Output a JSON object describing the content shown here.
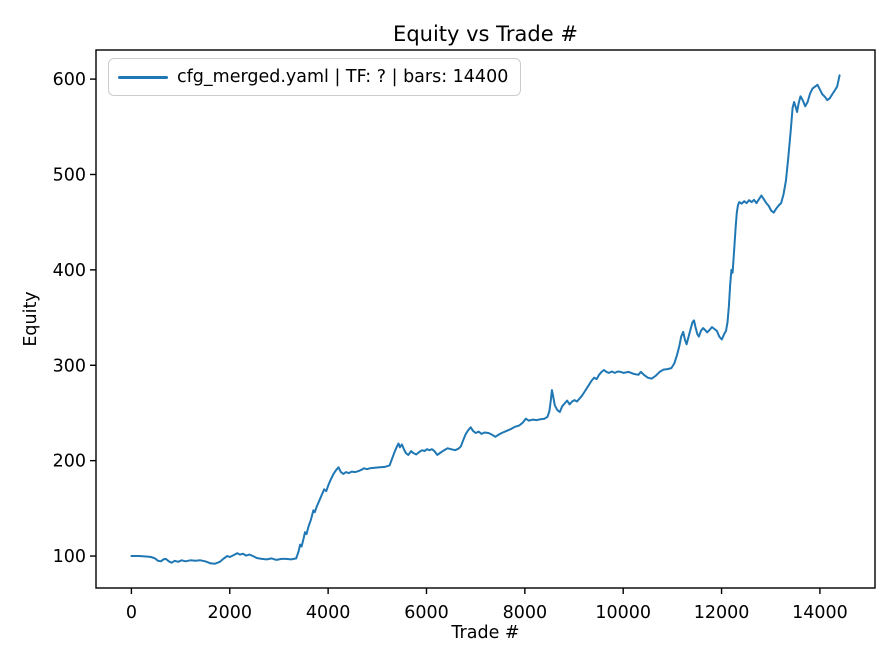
{
  "chart_data": {
    "type": "line",
    "title": "Equity vs Trade #",
    "xlabel": "Trade #",
    "ylabel": "Equity",
    "legend_position": "upper left",
    "grid": false,
    "background": "#ffffff",
    "spine_color": "#000000",
    "xlim": [
      -720,
      15120
    ],
    "ylim": [
      66.5,
      630.5
    ],
    "x_ticks": [
      0,
      2000,
      4000,
      6000,
      8000,
      10000,
      12000,
      14000
    ],
    "y_ticks": [
      100,
      200,
      300,
      400,
      500,
      600
    ],
    "series": [
      {
        "name": "cfg_merged.yaml | TF: ? | bars: 14400",
        "color": "#1f77b4",
        "points": [
          [
            0,
            100
          ],
          [
            150,
            100
          ],
          [
            300,
            99.5
          ],
          [
            400,
            99
          ],
          [
            480,
            97.5
          ],
          [
            540,
            95
          ],
          [
            600,
            94.5
          ],
          [
            650,
            96.5
          ],
          [
            700,
            97
          ],
          [
            760,
            94.5
          ],
          [
            820,
            93
          ],
          [
            880,
            95
          ],
          [
            950,
            94
          ],
          [
            1020,
            95.5
          ],
          [
            1100,
            94.5
          ],
          [
            1200,
            95.5
          ],
          [
            1300,
            95
          ],
          [
            1400,
            95.5
          ],
          [
            1500,
            94.5
          ],
          [
            1600,
            92.5
          ],
          [
            1700,
            92
          ],
          [
            1800,
            94
          ],
          [
            1880,
            97.5
          ],
          [
            1950,
            100
          ],
          [
            2000,
            99
          ],
          [
            2080,
            101
          ],
          [
            2150,
            103
          ],
          [
            2210,
            101.5
          ],
          [
            2270,
            102.5
          ],
          [
            2330,
            100.5
          ],
          [
            2400,
            101.5
          ],
          [
            2470,
            100
          ],
          [
            2550,
            98
          ],
          [
            2650,
            97
          ],
          [
            2750,
            96.5
          ],
          [
            2850,
            97.5
          ],
          [
            2950,
            96
          ],
          [
            3050,
            97
          ],
          [
            3150,
            97
          ],
          [
            3250,
            96.5
          ],
          [
            3350,
            97.5
          ],
          [
            3400,
            105
          ],
          [
            3430,
            112
          ],
          [
            3460,
            110
          ],
          [
            3500,
            118
          ],
          [
            3530,
            125
          ],
          [
            3560,
            123
          ],
          [
            3600,
            131
          ],
          [
            3650,
            138
          ],
          [
            3700,
            148
          ],
          [
            3730,
            146
          ],
          [
            3770,
            152
          ],
          [
            3820,
            158
          ],
          [
            3870,
            164
          ],
          [
            3920,
            170
          ],
          [
            3960,
            168
          ],
          [
            4010,
            175
          ],
          [
            4060,
            181
          ],
          [
            4110,
            186
          ],
          [
            4160,
            190
          ],
          [
            4210,
            193
          ],
          [
            4260,
            188
          ],
          [
            4310,
            186
          ],
          [
            4360,
            188
          ],
          [
            4420,
            187
          ],
          [
            4480,
            188.5
          ],
          [
            4550,
            188
          ],
          [
            4620,
            189
          ],
          [
            4680,
            190.5
          ],
          [
            4730,
            192
          ],
          [
            4790,
            191
          ],
          [
            4850,
            192
          ],
          [
            4950,
            192.5
          ],
          [
            5050,
            193
          ],
          [
            5150,
            193.5
          ],
          [
            5250,
            195
          ],
          [
            5300,
            202
          ],
          [
            5350,
            209
          ],
          [
            5400,
            215
          ],
          [
            5430,
            218
          ],
          [
            5460,
            214
          ],
          [
            5500,
            217
          ],
          [
            5540,
            212
          ],
          [
            5580,
            208
          ],
          [
            5630,
            206
          ],
          [
            5690,
            210
          ],
          [
            5730,
            208
          ],
          [
            5790,
            206.5
          ],
          [
            5850,
            209
          ],
          [
            5910,
            211
          ],
          [
            5960,
            210
          ],
          [
            6010,
            212
          ],
          [
            6060,
            211
          ],
          [
            6110,
            212
          ],
          [
            6160,
            210
          ],
          [
            6220,
            206
          ],
          [
            6290,
            208.5
          ],
          [
            6360,
            211
          ],
          [
            6430,
            213
          ],
          [
            6500,
            212
          ],
          [
            6580,
            211
          ],
          [
            6650,
            212.5
          ],
          [
            6700,
            215
          ],
          [
            6750,
            222
          ],
          [
            6800,
            228
          ],
          [
            6850,
            232
          ],
          [
            6900,
            235
          ],
          [
            6950,
            231
          ],
          [
            7000,
            229
          ],
          [
            7060,
            230.5
          ],
          [
            7120,
            228
          ],
          [
            7180,
            229.5
          ],
          [
            7260,
            229
          ],
          [
            7340,
            227
          ],
          [
            7400,
            225
          ],
          [
            7460,
            227
          ],
          [
            7530,
            229
          ],
          [
            7620,
            231
          ],
          [
            7710,
            233
          ],
          [
            7800,
            235.5
          ],
          [
            7890,
            237
          ],
          [
            7960,
            240
          ],
          [
            8020,
            244
          ],
          [
            8080,
            242
          ],
          [
            8160,
            243
          ],
          [
            8240,
            242.5
          ],
          [
            8320,
            243.5
          ],
          [
            8400,
            244
          ],
          [
            8460,
            246
          ],
          [
            8500,
            252
          ],
          [
            8530,
            264
          ],
          [
            8550,
            274
          ],
          [
            8575,
            268
          ],
          [
            8610,
            258
          ],
          [
            8660,
            253
          ],
          [
            8710,
            251
          ],
          [
            8760,
            257
          ],
          [
            8810,
            260
          ],
          [
            8860,
            263
          ],
          [
            8910,
            259
          ],
          [
            8960,
            262
          ],
          [
            9010,
            263.5
          ],
          [
            9060,
            262
          ],
          [
            9110,
            265
          ],
          [
            9160,
            268
          ],
          [
            9210,
            272
          ],
          [
            9260,
            276
          ],
          [
            9310,
            280
          ],
          [
            9360,
            284
          ],
          [
            9410,
            287
          ],
          [
            9460,
            285.5
          ],
          [
            9510,
            290
          ],
          [
            9560,
            293
          ],
          [
            9610,
            295
          ],
          [
            9660,
            293
          ],
          [
            9710,
            292
          ],
          [
            9770,
            293.5
          ],
          [
            9830,
            292
          ],
          [
            9890,
            293.5
          ],
          [
            9950,
            293
          ],
          [
            10010,
            292
          ],
          [
            10110,
            293
          ],
          [
            10210,
            291
          ],
          [
            10310,
            290
          ],
          [
            10360,
            293
          ],
          [
            10420,
            290
          ],
          [
            10500,
            287
          ],
          [
            10580,
            286
          ],
          [
            10660,
            289
          ],
          [
            10740,
            293
          ],
          [
            10820,
            295.5
          ],
          [
            10900,
            296
          ],
          [
            10980,
            297
          ],
          [
            11040,
            302
          ],
          [
            11090,
            310
          ],
          [
            11140,
            320
          ],
          [
            11180,
            330
          ],
          [
            11220,
            335
          ],
          [
            11255,
            327
          ],
          [
            11290,
            322
          ],
          [
            11330,
            330
          ],
          [
            11370,
            338
          ],
          [
            11410,
            345
          ],
          [
            11440,
            347
          ],
          [
            11470,
            340
          ],
          [
            11505,
            333
          ],
          [
            11540,
            330
          ],
          [
            11580,
            336
          ],
          [
            11625,
            339
          ],
          [
            11665,
            337
          ],
          [
            11705,
            334.5
          ],
          [
            11755,
            337
          ],
          [
            11805,
            340
          ],
          [
            11855,
            338
          ],
          [
            11905,
            336
          ],
          [
            11955,
            330
          ],
          [
            12005,
            327
          ],
          [
            12055,
            333
          ],
          [
            12090,
            336
          ],
          [
            12120,
            345
          ],
          [
            12150,
            362
          ],
          [
            12175,
            385
          ],
          [
            12200,
            400
          ],
          [
            12225,
            397
          ],
          [
            12255,
            420
          ],
          [
            12285,
            444
          ],
          [
            12310,
            460
          ],
          [
            12335,
            468
          ],
          [
            12360,
            471
          ],
          [
            12410,
            469.5
          ],
          [
            12460,
            472
          ],
          [
            12510,
            470
          ],
          [
            12560,
            473
          ],
          [
            12610,
            471
          ],
          [
            12660,
            473.5
          ],
          [
            12710,
            470
          ],
          [
            12760,
            474
          ],
          [
            12810,
            478
          ],
          [
            12860,
            474
          ],
          [
            12910,
            470
          ],
          [
            12960,
            467
          ],
          [
            13010,
            462
          ],
          [
            13060,
            460
          ],
          [
            13110,
            464
          ],
          [
            13160,
            467.5
          ],
          [
            13210,
            470
          ],
          [
            13260,
            479
          ],
          [
            13310,
            494
          ],
          [
            13360,
            519
          ],
          [
            13410,
            548
          ],
          [
            13445,
            570
          ],
          [
            13475,
            576
          ],
          [
            13505,
            571
          ],
          [
            13535,
            565.5
          ],
          [
            13565,
            574
          ],
          [
            13605,
            582
          ],
          [
            13650,
            578
          ],
          [
            13700,
            571.5
          ],
          [
            13750,
            576
          ],
          [
            13800,
            585
          ],
          [
            13850,
            590
          ],
          [
            13900,
            592
          ],
          [
            13950,
            594
          ],
          [
            14000,
            589
          ],
          [
            14050,
            584
          ],
          [
            14100,
            581.5
          ],
          [
            14150,
            578
          ],
          [
            14200,
            580
          ],
          [
            14250,
            584
          ],
          [
            14300,
            588
          ],
          [
            14350,
            592
          ],
          [
            14400,
            604
          ]
        ]
      }
    ]
  }
}
